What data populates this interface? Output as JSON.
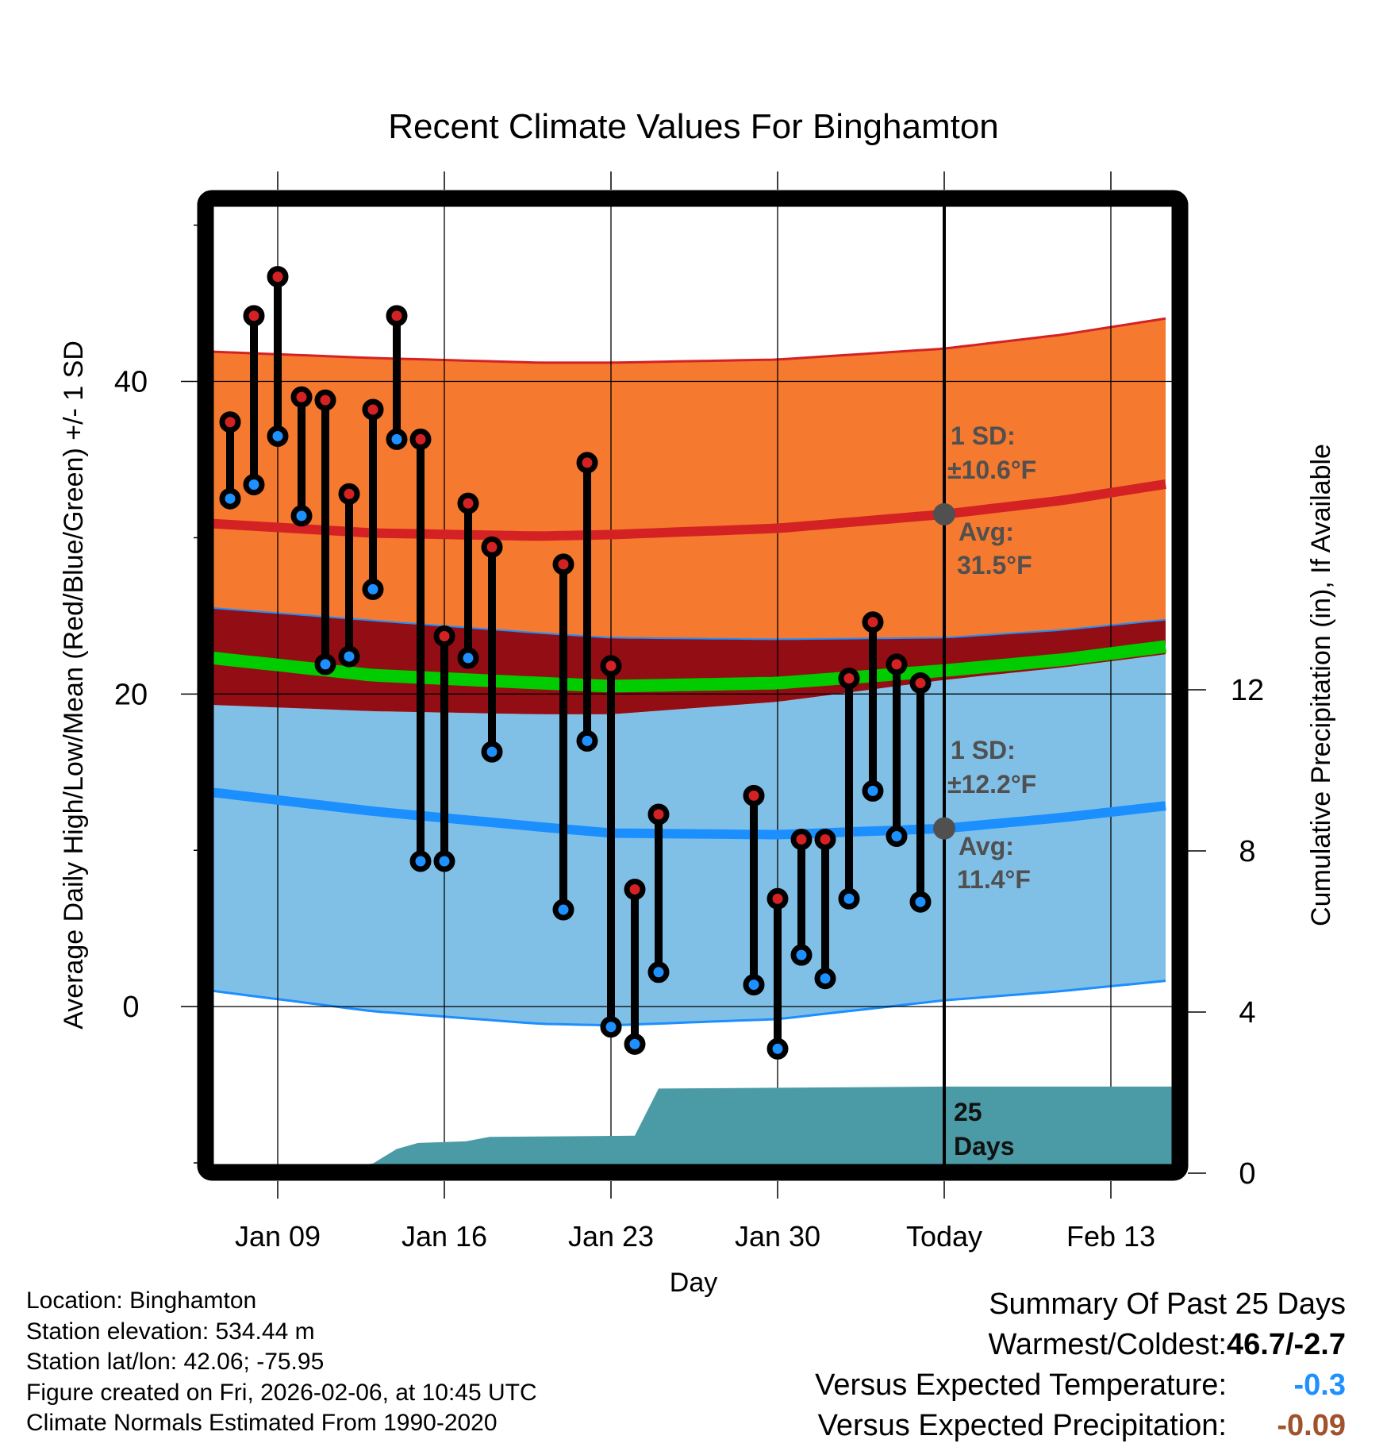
{
  "chart_data": {
    "type": "line",
    "title": "Recent Climate Values For Binghamton",
    "xlabel": "Day",
    "ylabel": "Average Daily High/Low/Mean (Red/Blue/Green) +/- 1 SD",
    "ylabel_right": "Cumulative Precipitation (in), If Available",
    "ylim": [
      -10.1,
      51.2
    ],
    "ylim_right": [
      0,
      14.4
    ],
    "xlim_day": [
      6.3,
      46.6
    ],
    "grid": true,
    "x_ticks": [
      {
        "day": 9,
        "label": "Jan 09"
      },
      {
        "day": 16,
        "label": "Jan 16"
      },
      {
        "day": 23,
        "label": "Jan 23"
      },
      {
        "day": 30,
        "label": "Jan 30"
      },
      {
        "day": 37,
        "label": "Today"
      },
      {
        "day": 44,
        "label": "Feb 13"
      }
    ],
    "y_ticks": [
      {
        "value": 0,
        "label": "0"
      },
      {
        "value": 10,
        "label": ""
      },
      {
        "value": 20,
        "label": "20"
      },
      {
        "value": 30,
        "label": ""
      },
      {
        "value": 40,
        "label": "40"
      },
      {
        "value": 50,
        "label": ""
      },
      {
        "value": -10,
        "label": ""
      }
    ],
    "y_ticks_right": [
      {
        "value": 0,
        "label": "0"
      },
      {
        "value": 4,
        "label": "4"
      },
      {
        "value": 8,
        "label": "8"
      },
      {
        "value": 12,
        "label": "12"
      }
    ],
    "today_day": 37,
    "observations": {
      "days": [
        "Jan 07",
        "Jan 08",
        "Jan 09",
        "Jan 10",
        "Jan 11",
        "Jan 12",
        "Jan 13",
        "Jan 14",
        "Jan 15",
        "Jan 16",
        "Jan 17",
        "Jan 18",
        "Jan 21",
        "Jan 22",
        "Jan 23",
        "Jan 24",
        "Jan 25",
        "Jan 29",
        "Jan 30",
        "Jan 31",
        "Feb 01",
        "Feb 02",
        "Feb 03",
        "Feb 04",
        "Feb 05"
      ],
      "day_index": [
        7,
        8,
        9,
        10,
        11,
        12,
        13,
        14,
        15,
        16,
        17,
        18,
        21,
        22,
        23,
        24,
        25,
        29,
        30,
        31,
        32,
        33,
        34,
        35,
        36
      ],
      "high": [
        37.4,
        44.2,
        46.7,
        39.0,
        38.8,
        32.8,
        38.2,
        44.2,
        36.3,
        23.7,
        32.2,
        29.4,
        28.3,
        34.8,
        21.8,
        7.5,
        12.3,
        13.5,
        6.9,
        10.7,
        10.7,
        21.0,
        24.6,
        21.9,
        20.7
      ],
      "low": [
        32.5,
        33.4,
        36.5,
        31.4,
        21.9,
        22.4,
        26.7,
        36.3,
        9.3,
        9.3,
        22.3,
        16.3,
        6.2,
        17.0,
        -1.3,
        -2.4,
        2.2,
        1.4,
        -2.7,
        3.3,
        1.8,
        6.9,
        13.8,
        10.9,
        6.7
      ]
    },
    "normals": {
      "day_index": [
        6.3,
        13,
        20,
        23,
        30,
        37,
        42,
        46.6
      ],
      "high_plus_sd": [
        41.9,
        41.5,
        41.2,
        41.2,
        41.4,
        42.1,
        43.0,
        44.1
      ],
      "high": [
        30.9,
        30.3,
        30.1,
        30.2,
        30.6,
        31.5,
        32.4,
        33.5
      ],
      "high_minus_sd": [
        25.5,
        24.7,
        23.9,
        23.6,
        23.5,
        23.6,
        24.1,
        24.8
      ],
      "mean": [
        22.3,
        21.2,
        20.7,
        20.5,
        20.7,
        21.5,
        22.2,
        23.1
      ],
      "low_plus_sd": [
        19.3,
        18.9,
        18.7,
        18.7,
        19.5,
        20.9,
        21.7,
        22.6
      ],
      "low": [
        13.7,
        12.5,
        11.5,
        11.1,
        11.0,
        11.4,
        12.1,
        12.9
      ],
      "low_minus_sd": [
        1.0,
        -0.3,
        -1.1,
        -1.2,
        -0.8,
        0.4,
        1.0,
        1.7
      ]
    },
    "precipitation": {
      "day_index": [
        6.3,
        9.9,
        13.0,
        14.0,
        14.9,
        16.9,
        17.9,
        24.0,
        25.0,
        30.0,
        37.0,
        46.6
      ],
      "cumulative_in": [
        0,
        0,
        0.24,
        0.6,
        0.75,
        0.79,
        0.9,
        0.93,
        2.1,
        2.12,
        2.15,
        2.15
      ]
    },
    "annotations": {
      "high_sd_line1": "1 SD:",
      "high_sd_line2": "±10.6°F",
      "high_avg_line1": "Avg:",
      "high_avg_line2": "31.5°F",
      "low_sd_line1": "1 SD:",
      "low_sd_line2": "±12.2°F",
      "low_avg_line1": "Avg:",
      "low_avg_line2": "11.4°F",
      "days_line1": "25",
      "days_line2": "Days"
    },
    "colors": {
      "high_band": "#f5792e",
      "overlap_band": "#930d15",
      "low_band": "#81c0e6",
      "high_line": "#d42224",
      "low_line": "#1c8fff",
      "mean_line": "#00cc00",
      "precip": "#4a9ba5",
      "high_marker": "#d42224",
      "low_marker": "#1e90ff",
      "annotation": "#505050"
    }
  },
  "footer": {
    "location": "Location: Binghamton",
    "elevation": "Station elevation: 534.44 m",
    "latlon": "Station lat/lon: 42.06; -75.95",
    "created": "Figure created on Fri, 2026-02-06, at 10:45 UTC",
    "normals": "Climate Normals Estimated From 1990-2020"
  },
  "summary": {
    "title": "Summary Of Past 25 Days",
    "warmest_coldest_label": "Warmest/Coldest:",
    "warmest_coldest_value": "46.7/-2.7",
    "temp_label": "Versus Expected Temperature:",
    "temp_value": "-0.3",
    "temp_color": "#1e90ff",
    "precip_label": "Versus Expected Precipitation:",
    "precip_value": "-0.09",
    "precip_color": "#a0522d"
  }
}
